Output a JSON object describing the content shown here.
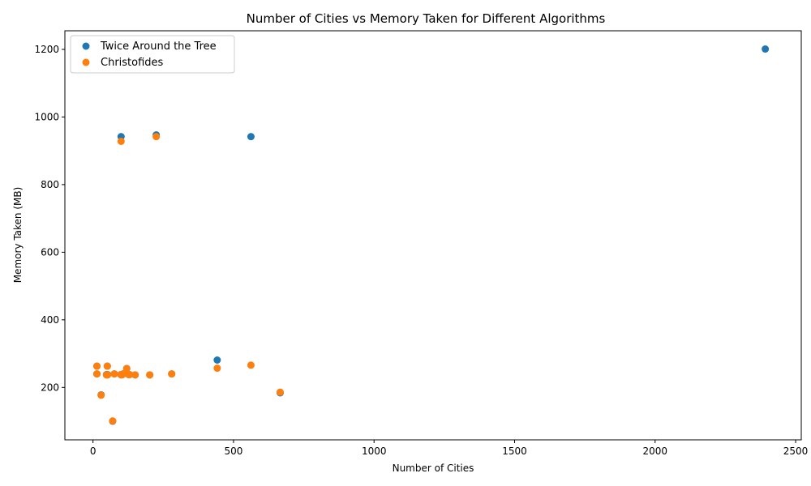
{
  "chart_data": {
    "type": "scatter",
    "title": "Number of Cities vs Memory Taken for Different Algorithms",
    "xlabel": "Number of Cities",
    "ylabel": "Memory Taken (MB)",
    "xlim": [
      -100,
      2520
    ],
    "ylim": [
      45,
      1255
    ],
    "xticks": [
      0,
      500,
      1000,
      1500,
      2000,
      2500
    ],
    "yticks": [
      200,
      400,
      600,
      800,
      1000,
      1200
    ],
    "grid": false,
    "legend_position": "top-left",
    "series": [
      {
        "name": "Twice Around the Tree",
        "color": "#1f77b4",
        "points": [
          [
            14,
            263
          ],
          [
            14,
            240
          ],
          [
            29,
            178
          ],
          [
            48,
            238
          ],
          [
            51,
            263
          ],
          [
            52,
            238
          ],
          [
            70,
            100
          ],
          [
            76,
            240
          ],
          [
            99,
            238
          ],
          [
            100,
            942
          ],
          [
            101,
            238
          ],
          [
            105,
            238
          ],
          [
            107,
            240
          ],
          [
            120,
            256
          ],
          [
            127,
            238
          ],
          [
            130,
            238
          ],
          [
            150,
            237
          ],
          [
            202,
            237
          ],
          [
            225,
            947
          ],
          [
            280,
            240
          ],
          [
            442,
            281
          ],
          [
            562,
            942
          ],
          [
            666,
            184
          ],
          [
            2392,
            1201
          ]
        ]
      },
      {
        "name": "Christofides",
        "color": "#ff7f0e",
        "points": [
          [
            14,
            263
          ],
          [
            14,
            240
          ],
          [
            29,
            177
          ],
          [
            48,
            237
          ],
          [
            51,
            263
          ],
          [
            52,
            237
          ],
          [
            70,
            101
          ],
          [
            76,
            240
          ],
          [
            99,
            238
          ],
          [
            100,
            928
          ],
          [
            101,
            237
          ],
          [
            105,
            238
          ],
          [
            107,
            240
          ],
          [
            120,
            256
          ],
          [
            127,
            238
          ],
          [
            130,
            238
          ],
          [
            150,
            237
          ],
          [
            202,
            237
          ],
          [
            225,
            942
          ],
          [
            280,
            240
          ],
          [
            442,
            257
          ],
          [
            562,
            266
          ],
          [
            666,
            186
          ]
        ]
      }
    ]
  }
}
